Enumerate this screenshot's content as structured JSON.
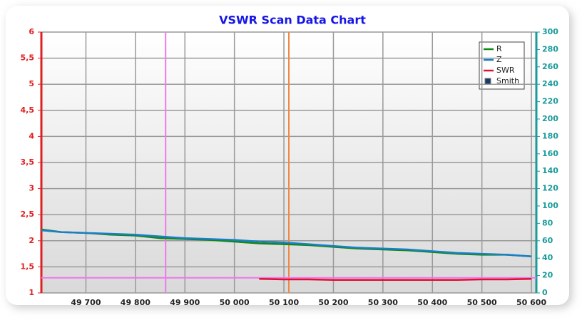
{
  "chart_data": {
    "type": "line",
    "title": "VSWR Scan Data Chart",
    "x": [
      49610,
      49650,
      49700,
      49750,
      49800,
      49850,
      49900,
      49950,
      50000,
      50050,
      50100,
      50150,
      50200,
      50250,
      50300,
      50350,
      50400,
      50450,
      50500,
      50550,
      50600
    ],
    "xlim": [
      49610,
      50610
    ],
    "xticks": [
      {
        "value": 49700,
        "label": "49 700"
      },
      {
        "value": 49800,
        "label": "49 800"
      },
      {
        "value": 49900,
        "label": "49 900"
      },
      {
        "value": 50000,
        "label": "50 000"
      },
      {
        "value": 50100,
        "label": "50 100"
      },
      {
        "value": 50200,
        "label": "50 200"
      },
      {
        "value": 50300,
        "label": "50 300"
      },
      {
        "value": 50400,
        "label": "50 400"
      },
      {
        "value": 50500,
        "label": "50 500"
      },
      {
        "value": 50600,
        "label": "50 600"
      }
    ],
    "ylim": [
      1,
      6
    ],
    "yticks": [
      1,
      {
        "value": 1.5,
        "label": "1,5"
      },
      2,
      {
        "value": 2.5,
        "label": "2,5"
      },
      3,
      {
        "value": 3.5,
        "label": "3,5"
      },
      4,
      {
        "value": 4.5,
        "label": "4,5"
      },
      5,
      {
        "value": 5.5,
        "label": "5,5"
      },
      6
    ],
    "y2lim": [
      0,
      300
    ],
    "y2ticks": [
      0,
      20,
      40,
      60,
      80,
      100,
      120,
      140,
      160,
      180,
      200,
      220,
      240,
      260,
      280,
      300
    ],
    "grid": true,
    "legend": "top-right",
    "series": [
      {
        "name": "R",
        "color": "#118811",
        "axis": "y2",
        "values": [
          73,
          70,
          69,
          67,
          66,
          63,
          62,
          61,
          59,
          57,
          56,
          55,
          53,
          51,
          50,
          49,
          47,
          45,
          44,
          44,
          42
        ]
      },
      {
        "name": "Z",
        "color": "#1a7fc8",
        "axis": "y2",
        "values": [
          72,
          70,
          69,
          68,
          67,
          65,
          63,
          62,
          61,
          59,
          58,
          56,
          54,
          52,
          51,
          50,
          48,
          46,
          45,
          44,
          42
        ]
      },
      {
        "name": "SWR",
        "color": "#e01030",
        "values": [
          null,
          null,
          null,
          null,
          null,
          null,
          null,
          null,
          null,
          1.27,
          1.26,
          1.26,
          1.25,
          1.25,
          1.25,
          1.25,
          1.25,
          1.25,
          1.26,
          1.26,
          1.27
        ]
      }
    ],
    "legend_extra": "Smith",
    "markers": {
      "vertical": [
        {
          "value": 49861,
          "color": "#ee77ee"
        },
        {
          "value": 50110,
          "color": "#ee8844"
        }
      ],
      "horizontal": [
        {
          "value": 1.29,
          "color": "#ee77ee"
        }
      ]
    }
  }
}
